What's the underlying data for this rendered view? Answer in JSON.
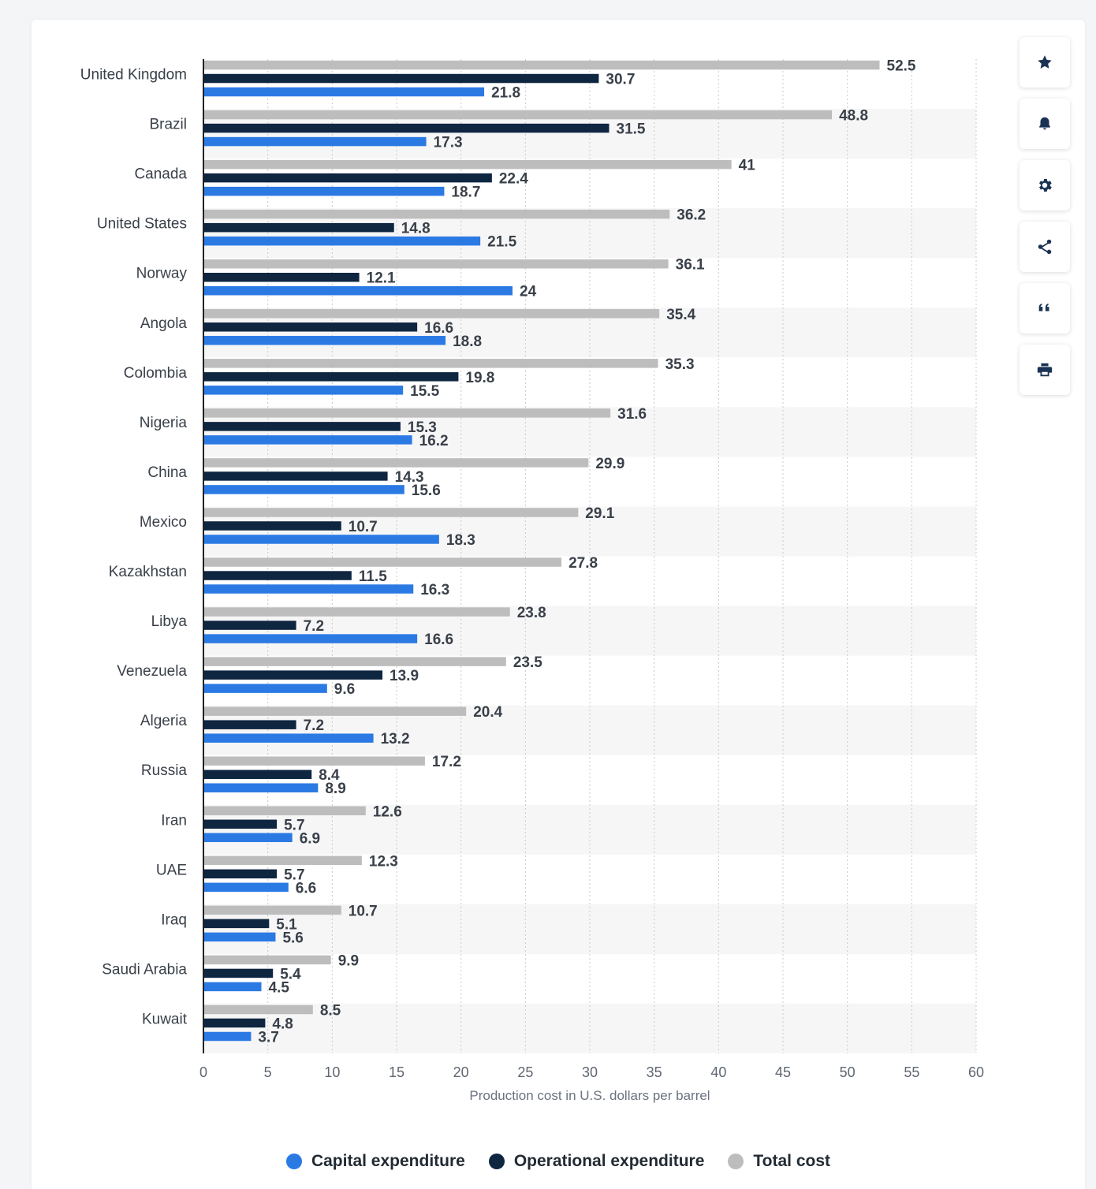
{
  "toolbar": {
    "buttons": [
      {
        "name": "favorite",
        "icon": "star-icon"
      },
      {
        "name": "notify",
        "icon": "bell-icon"
      },
      {
        "name": "settings",
        "icon": "gear-icon"
      },
      {
        "name": "share",
        "icon": "share-icon"
      },
      {
        "name": "cite",
        "icon": "quote-icon"
      },
      {
        "name": "print",
        "icon": "printer-icon"
      }
    ]
  },
  "chart_data": {
    "type": "bar",
    "orientation": "horizontal",
    "xlabel": "Production cost in U.S. dollars per barrel",
    "xlim": [
      0,
      60
    ],
    "xticks": [
      0,
      5,
      10,
      15,
      20,
      25,
      30,
      35,
      40,
      45,
      50,
      55,
      60
    ],
    "grid": true,
    "legend_position": "bottom",
    "categories": [
      "United Kingdom",
      "Brazil",
      "Canada",
      "United States",
      "Norway",
      "Angola",
      "Colombia",
      "Nigeria",
      "China",
      "Mexico",
      "Kazakhstan",
      "Libya",
      "Venezuela",
      "Algeria",
      "Russia",
      "Iran",
      "UAE",
      "Iraq",
      "Saudi Arabia",
      "Kuwait"
    ],
    "series": [
      {
        "name": "Total cost",
        "color": "#bdbdbd",
        "values": [
          52.5,
          48.8,
          41,
          36.2,
          36.1,
          35.4,
          35.3,
          31.6,
          29.9,
          29.1,
          27.8,
          23.8,
          23.5,
          20.4,
          17.2,
          12.6,
          12.3,
          10.7,
          9.9,
          8.5
        ]
      },
      {
        "name": "Operational expenditure",
        "color": "#0f2641",
        "values": [
          30.7,
          31.5,
          22.4,
          14.8,
          12.1,
          16.6,
          19.8,
          15.3,
          14.3,
          10.7,
          11.5,
          7.2,
          13.9,
          7.2,
          8.4,
          5.7,
          5.7,
          5.1,
          5.4,
          4.8
        ]
      },
      {
        "name": "Capital expenditure",
        "color": "#2b7ae4",
        "values": [
          21.8,
          17.3,
          18.7,
          21.5,
          24,
          18.8,
          15.5,
          16.2,
          15.6,
          18.3,
          16.3,
          16.6,
          9.6,
          13.2,
          8.9,
          6.9,
          6.6,
          5.6,
          4.5,
          3.7
        ]
      }
    ]
  },
  "legend": {
    "items": [
      {
        "label": "Capital expenditure",
        "color": "#2b7ae4"
      },
      {
        "label": "Operational expenditure",
        "color": "#0f2641"
      },
      {
        "label": "Total cost",
        "color": "#bdbdbd"
      }
    ]
  }
}
